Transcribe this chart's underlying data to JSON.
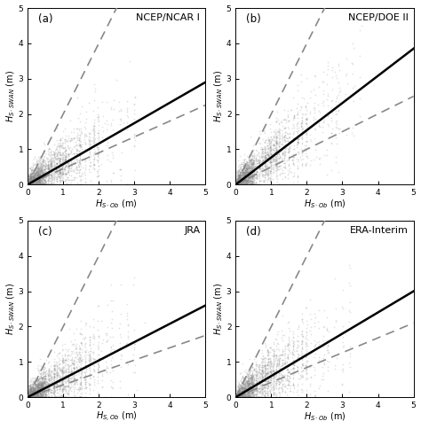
{
  "panels": [
    {
      "label": "(a)",
      "title": "NCEP/NCAR I",
      "reg_slope": 0.58,
      "reg_intercept": 0.0,
      "dashed_upper_slope": 2.0,
      "dashed_upper_intercept": 0.0,
      "dashed_lower_slope": 0.45,
      "dashed_lower_intercept": 0.0,
      "scatter_seed": 42,
      "scatter_x_max": 2.3,
      "xlabel": "$H_{S\\cdot Ob}$ (m)",
      "ylabel": "$H_{S\\cdot SWAN}$ (m)"
    },
    {
      "label": "(b)",
      "title": "NCEP/DOE II",
      "reg_slope": 0.77,
      "reg_intercept": 0.0,
      "dashed_upper_slope": 2.0,
      "dashed_upper_intercept": 0.0,
      "dashed_lower_slope": 0.5,
      "dashed_lower_intercept": 0.0,
      "scatter_seed": 123,
      "scatter_x_max": 2.8,
      "xlabel": "$H_{S\\cdot Ob}$ (m)",
      "ylabel": "$H_{S\\cdot SWAN}$ (m)"
    },
    {
      "label": "(c)",
      "title": "JRA",
      "reg_slope": 0.52,
      "reg_intercept": 0.0,
      "dashed_upper_slope": 2.0,
      "dashed_upper_intercept": 0.0,
      "dashed_lower_slope": 0.35,
      "dashed_lower_intercept": 0.0,
      "scatter_seed": 7,
      "scatter_x_max": 2.3,
      "xlabel": "$H_{S,Ob}$ (m)",
      "ylabel": "$H_{S\\cdot SWAN}$ (m)"
    },
    {
      "label": "(d)",
      "title": "ERA-Interim",
      "reg_slope": 0.6,
      "reg_intercept": 0.0,
      "dashed_upper_slope": 2.0,
      "dashed_upper_intercept": 0.0,
      "dashed_lower_slope": 0.42,
      "dashed_lower_intercept": 0.0,
      "scatter_seed": 99,
      "scatter_x_max": 2.5,
      "xlabel": "$H_{S\\cdot Ob}$ (m)",
      "ylabel": "$H_{S\\cdot SWAN}$ (m)"
    }
  ],
  "xlim": [
    0,
    5
  ],
  "ylim": [
    0,
    5
  ],
  "xticks": [
    0,
    1,
    2,
    3,
    4,
    5
  ],
  "yticks": [
    0,
    1,
    2,
    3,
    4,
    5
  ],
  "scatter_color": "#888888",
  "scatter_alpha": 0.25,
  "scatter_size": 1.5,
  "line_color": "#000000",
  "dashed_color": "#888888",
  "bg_color": "#ffffff"
}
